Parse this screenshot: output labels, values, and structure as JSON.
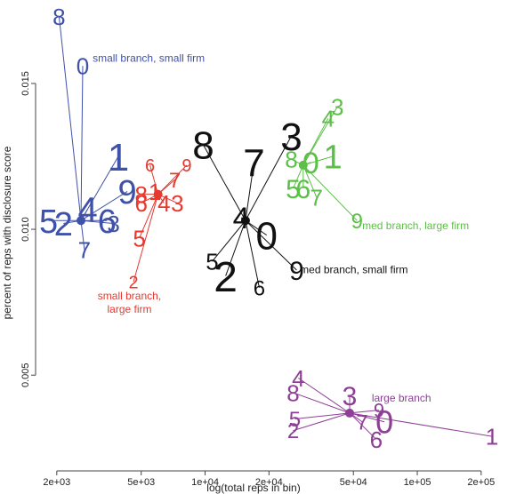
{
  "chart_data": {
    "type": "scatter",
    "title": "",
    "xlabel": "log(total reps in bin)",
    "ylabel": "percent of reps with disclosure score",
    "x_scale": "log",
    "x_ticks": [
      2000,
      5000,
      10000,
      20000,
      50000,
      100000,
      200000
    ],
    "x_tick_labels": [
      "2e+03",
      "5e+03",
      "1e+04",
      "2e+04",
      "5e+04",
      "1e+05",
      "2e+05"
    ],
    "y_ticks": [
      0.005,
      0.01,
      0.015
    ],
    "y_tick_labels": [
      "0.005",
      "0.010",
      "0.015"
    ],
    "xlim": [
      1700,
      260000
    ],
    "ylim": [
      0.0019,
      0.0178
    ],
    "grid": false,
    "legend": "none",
    "series": [
      {
        "name": "small branch, small firm",
        "color": "#3f51a8",
        "centroid": [
          2600,
          0.0103
        ],
        "label_pos": [
          2950,
          0.01575
        ],
        "points": [
          {
            "label": "8",
            "x": 2050,
            "y": 0.0173,
            "size": 26
          },
          {
            "label": "0",
            "x": 2650,
            "y": 0.0156,
            "size": 26
          },
          {
            "label": "1",
            "x": 3900,
            "y": 0.0125,
            "size": 44
          },
          {
            "label": "9",
            "x": 4300,
            "y": 0.0113,
            "size": 38
          },
          {
            "label": "5",
            "x": 1830,
            "y": 0.0103,
            "size": 38
          },
          {
            "label": "2",
            "x": 2150,
            "y": 0.0102,
            "size": 38
          },
          {
            "label": "4",
            "x": 2800,
            "y": 0.0107,
            "size": 40
          },
          {
            "label": "6",
            "x": 3450,
            "y": 0.0103,
            "size": 38
          },
          {
            "label": "3",
            "x": 3700,
            "y": 0.0102,
            "size": 26
          },
          {
            "label": "7",
            "x": 2700,
            "y": 0.0093,
            "size": 26
          }
        ]
      },
      {
        "name": "small branch, large firm",
        "color": "#e8382e",
        "centroid": [
          6000,
          0.0112
        ],
        "label_pos": [
          4400,
          0.0076
        ],
        "points": [
          {
            "label": "6",
            "x": 5500,
            "y": 0.0122,
            "size": 20
          },
          {
            "label": "9",
            "x": 8200,
            "y": 0.0122,
            "size": 20
          },
          {
            "label": "7",
            "x": 7200,
            "y": 0.0117,
            "size": 24
          },
          {
            "label": "1",
            "x": 5800,
            "y": 0.0113,
            "size": 26
          },
          {
            "label": "8",
            "x": 5000,
            "y": 0.0112,
            "size": 26
          },
          {
            "label": "6",
            "x": 5000,
            "y": 0.0109,
            "size": 26
          },
          {
            "label": "4",
            "x": 6400,
            "y": 0.0109,
            "size": 26
          },
          {
            "label": "3",
            "x": 7400,
            "y": 0.0109,
            "size": 26
          },
          {
            "label": "5",
            "x": 4900,
            "y": 0.0097,
            "size": 26
          },
          {
            "label": "2",
            "x": 4600,
            "y": 0.0082,
            "size": 20
          }
        ]
      },
      {
        "name": "med branch, small firm",
        "color": "#111111",
        "centroid": [
          15500,
          0.0103
        ],
        "label_pos": [
          28000,
          0.0085
        ],
        "points": [
          {
            "label": "8",
            "x": 9800,
            "y": 0.0129,
            "size": 44
          },
          {
            "label": "3",
            "x": 25500,
            "y": 0.0132,
            "size": 44
          },
          {
            "label": "7",
            "x": 17000,
            "y": 0.0123,
            "size": 44
          },
          {
            "label": "4",
            "x": 14800,
            "y": 0.0104,
            "size": 34
          },
          {
            "label": "0",
            "x": 19500,
            "y": 0.0098,
            "size": 44
          },
          {
            "label": "9",
            "x": 27000,
            "y": 0.0086,
            "size": 30
          },
          {
            "label": "5",
            "x": 10800,
            "y": 0.0089,
            "size": 26
          },
          {
            "label": "2",
            "x": 12500,
            "y": 0.0084,
            "size": 48
          },
          {
            "label": "6",
            "x": 18000,
            "y": 0.008,
            "size": 24
          }
        ]
      },
      {
        "name": "med branch, large firm",
        "color": "#5cbf47",
        "centroid": [
          29000,
          0.0122
        ],
        "label_pos": [
          55000,
          0.01
        ],
        "points": [
          {
            "label": "4",
            "x": 38000,
            "y": 0.0138,
            "size": 26
          },
          {
            "label": "3",
            "x": 42000,
            "y": 0.0142,
            "size": 26
          },
          {
            "label": "8",
            "x": 25500,
            "y": 0.0124,
            "size": 26
          },
          {
            "label": "0",
            "x": 31500,
            "y": 0.0123,
            "size": 34
          },
          {
            "label": "1",
            "x": 40000,
            "y": 0.0125,
            "size": 38
          },
          {
            "label": "5",
            "x": 26000,
            "y": 0.0114,
            "size": 30
          },
          {
            "label": "6",
            "x": 29000,
            "y": 0.0114,
            "size": 30
          },
          {
            "label": "7",
            "x": 33500,
            "y": 0.0111,
            "size": 26
          },
          {
            "label": "9",
            "x": 52000,
            "y": 0.0103,
            "size": 24
          }
        ]
      },
      {
        "name": "large branch",
        "color": "#8d3f96",
        "centroid": [
          48000,
          0.0037
        ],
        "label_pos": [
          61000,
          0.0041
        ],
        "points": [
          {
            "label": "4",
            "x": 27500,
            "y": 0.0049,
            "size": 26
          },
          {
            "label": "8",
            "x": 26000,
            "y": 0.0044,
            "size": 26
          },
          {
            "label": "3",
            "x": 48000,
            "y": 0.0043,
            "size": 30
          },
          {
            "label": "9",
            "x": 66000,
            "y": 0.0038,
            "size": 22
          },
          {
            "label": "5",
            "x": 26500,
            "y": 0.0035,
            "size": 24
          },
          {
            "label": "2",
            "x": 26000,
            "y": 0.0031,
            "size": 24
          },
          {
            "label": "7",
            "x": 55000,
            "y": 0.0034,
            "size": 24
          },
          {
            "label": "0",
            "x": 70000,
            "y": 0.0034,
            "size": 36
          },
          {
            "label": "6",
            "x": 64000,
            "y": 0.0028,
            "size": 26
          },
          {
            "label": "1",
            "x": 225000,
            "y": 0.0029,
            "size": 26
          }
        ]
      }
    ]
  }
}
